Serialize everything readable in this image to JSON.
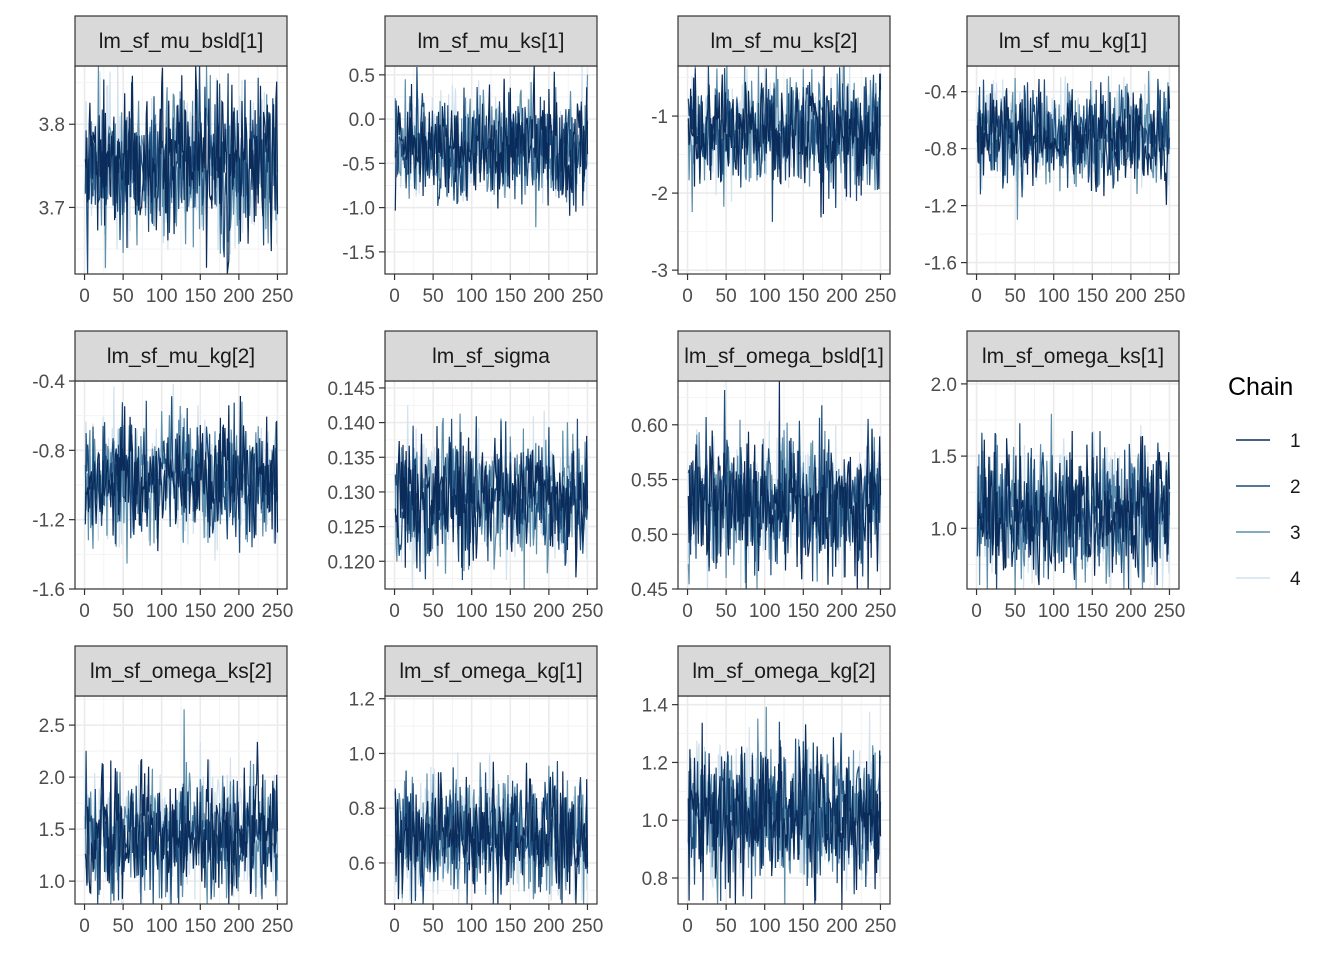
{
  "legend": {
    "title": "Chain",
    "entries": [
      {
        "label": "1",
        "color": "#0b2c5a"
      },
      {
        "label": "2",
        "color": "#1b4c7c"
      },
      {
        "label": "3",
        "color": "#5d8fac"
      },
      {
        "label": "4",
        "color": "#d2e2ee"
      }
    ]
  },
  "chart_data": [
    {
      "type": "line",
      "title": "lm_sf_mu_bsld[1]",
      "xlim": [
        0,
        250
      ],
      "ylim": [
        3.62,
        3.87
      ],
      "xticks": [
        0,
        50,
        100,
        150,
        200,
        250
      ],
      "xtick_labels": [
        "0",
        "50",
        "100",
        "150",
        "200",
        "250"
      ],
      "yticks": [
        3.7,
        3.8
      ],
      "ytick_labels": [
        "3.7",
        "3.8"
      ],
      "center": 3.75,
      "spread": 0.045,
      "n": 250,
      "grid": true
    },
    {
      "type": "line",
      "title": "lm_sf_mu_ks[1]",
      "xlim": [
        0,
        250
      ],
      "ylim": [
        -1.75,
        0.6
      ],
      "xticks": [
        0,
        50,
        100,
        150,
        200,
        250
      ],
      "xtick_labels": [
        "0",
        "50",
        "100",
        "150",
        "200",
        "250"
      ],
      "yticks": [
        0.5,
        0.0,
        -0.5,
        -1.0,
        -1.5
      ],
      "ytick_labels": [
        "0.5",
        "0.0",
        "-0.5",
        "-1.0",
        "-1.5"
      ],
      "center": -0.3,
      "spread": 0.3,
      "n": 250,
      "grid": true
    },
    {
      "type": "line",
      "title": "lm_sf_mu_ks[2]",
      "xlim": [
        0,
        250
      ],
      "ylim": [
        -3.05,
        -0.35
      ],
      "xticks": [
        0,
        50,
        100,
        150,
        200,
        250
      ],
      "xtick_labels": [
        "0",
        "50",
        "100",
        "150",
        "200",
        "250"
      ],
      "yticks": [
        -1,
        -2,
        -3
      ],
      "ytick_labels": [
        "-1",
        "-2",
        "-3"
      ],
      "center": -1.2,
      "spread": 0.35,
      "n": 250,
      "grid": true
    },
    {
      "type": "line",
      "title": "lm_sf_mu_kg[1]",
      "xlim": [
        0,
        250
      ],
      "ylim": [
        -1.68,
        -0.22
      ],
      "xticks": [
        0,
        50,
        100,
        150,
        200,
        250
      ],
      "xtick_labels": [
        "0",
        "50",
        "100",
        "150",
        "200",
        "250"
      ],
      "yticks": [
        -0.4,
        -0.8,
        -1.2,
        -1.6
      ],
      "ytick_labels": [
        "-0.4",
        "-0.8",
        "-1.2",
        "-1.6"
      ],
      "center": -0.72,
      "spread": 0.17,
      "n": 250,
      "grid": true
    },
    {
      "type": "line",
      "title": "lm_sf_mu_kg[2]",
      "xlim": [
        0,
        250
      ],
      "ylim": [
        -1.6,
        -0.4
      ],
      "xticks": [
        0,
        50,
        100,
        150,
        200,
        250
      ],
      "xtick_labels": [
        "0",
        "50",
        "100",
        "150",
        "200",
        "250"
      ],
      "yticks": [
        -0.4,
        -0.8,
        -1.2,
        -1.6
      ],
      "ytick_labels": [
        "-0.4",
        "-0.8",
        "-1.2",
        "-1.6"
      ],
      "center": -0.98,
      "spread": 0.17,
      "n": 250,
      "grid": true
    },
    {
      "type": "line",
      "title": "lm_sf_sigma",
      "xlim": [
        0,
        250
      ],
      "ylim": [
        0.116,
        0.146
      ],
      "xticks": [
        0,
        50,
        100,
        150,
        200,
        250
      ],
      "xtick_labels": [
        "0",
        "50",
        "100",
        "150",
        "200",
        "250"
      ],
      "yticks": [
        0.145,
        0.14,
        0.135,
        0.13,
        0.125,
        0.12
      ],
      "ytick_labels": [
        "0.145",
        "0.140",
        "0.135",
        "0.130",
        "0.125",
        "0.120"
      ],
      "center": 0.129,
      "spread": 0.0045,
      "n": 250,
      "grid": true
    },
    {
      "type": "line",
      "title": "lm_sf_omega_bsld[1]",
      "xlim": [
        0,
        250
      ],
      "ylim": [
        0.45,
        0.64
      ],
      "xticks": [
        0,
        50,
        100,
        150,
        200,
        250
      ],
      "xtick_labels": [
        "0",
        "50",
        "100",
        "150",
        "200",
        "250"
      ],
      "yticks": [
        0.6,
        0.55,
        0.5,
        0.45
      ],
      "ytick_labels": [
        "0.60",
        "0.55",
        "0.50",
        "0.45"
      ],
      "center": 0.53,
      "spread": 0.03,
      "n": 250,
      "grid": true
    },
    {
      "type": "line",
      "title": "lm_sf_omega_ks[1]",
      "xlim": [
        0,
        250
      ],
      "ylim": [
        0.58,
        2.02
      ],
      "xticks": [
        0,
        50,
        100,
        150,
        200,
        250
      ],
      "xtick_labels": [
        "0",
        "50",
        "100",
        "150",
        "200",
        "250"
      ],
      "yticks": [
        2.0,
        1.5,
        1.0
      ],
      "ytick_labels": [
        "2.0",
        "1.5",
        "1.0"
      ],
      "center": 1.1,
      "spread": 0.22,
      "n": 250,
      "grid": true
    },
    {
      "type": "line",
      "title": "lm_sf_omega_ks[2]",
      "xlim": [
        0,
        250
      ],
      "ylim": [
        0.78,
        2.78
      ],
      "xticks": [
        0,
        50,
        100,
        150,
        200,
        250
      ],
      "xtick_labels": [
        "0",
        "50",
        "100",
        "150",
        "200",
        "250"
      ],
      "yticks": [
        2.5,
        2.0,
        1.5,
        1.0
      ],
      "ytick_labels": [
        "2.5",
        "2.0",
        "1.5",
        "1.0"
      ],
      "center": 1.45,
      "spread": 0.3,
      "n": 250,
      "grid": true
    },
    {
      "type": "line",
      "title": "lm_sf_omega_kg[1]",
      "xlim": [
        0,
        250
      ],
      "ylim": [
        0.45,
        1.21
      ],
      "xticks": [
        0,
        50,
        100,
        150,
        200,
        250
      ],
      "xtick_labels": [
        "0",
        "50",
        "100",
        "150",
        "200",
        "250"
      ],
      "yticks": [
        1.2,
        1.0,
        0.8,
        0.6
      ],
      "ytick_labels": [
        "1.2",
        "1.0",
        "0.8",
        "0.6"
      ],
      "center": 0.7,
      "spread": 0.11,
      "n": 250,
      "grid": true
    },
    {
      "type": "line",
      "title": "lm_sf_omega_kg[2]",
      "xlim": [
        0,
        250
      ],
      "ylim": [
        0.71,
        1.43
      ],
      "xticks": [
        0,
        50,
        100,
        150,
        200,
        250
      ],
      "xtick_labels": [
        "0",
        "50",
        "100",
        "150",
        "200",
        "250"
      ],
      "yticks": [
        1.4,
        1.2,
        1.0,
        0.8
      ],
      "ytick_labels": [
        "1.4",
        "1.2",
        "1.0",
        "0.8"
      ],
      "center": 1.02,
      "spread": 0.12,
      "n": 250,
      "grid": true
    }
  ]
}
